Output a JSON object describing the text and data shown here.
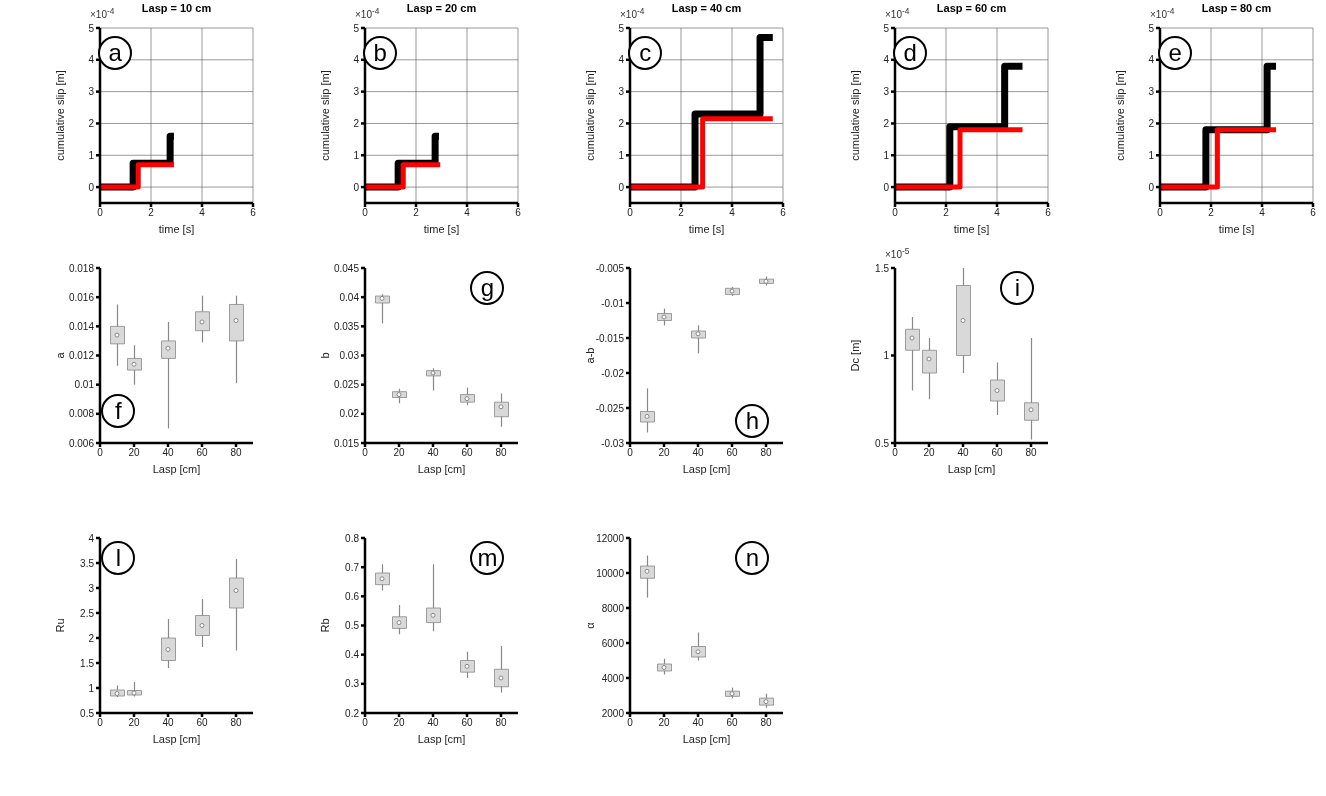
{
  "chart_data": [
    {
      "type": "step",
      "title": "Lasp = 10 cm",
      "xlabel": "time [s]",
      "ylabel": "cumulative slip [m]",
      "annotations": [
        "a",
        "×10$^{-4}$"
      ],
      "xlim": [
        0,
        6
      ],
      "xticks": [
        0,
        2,
        4,
        6
      ],
      "ylim": [
        -0.5,
        5
      ],
      "yticks": [
        0,
        1,
        2,
        3,
        4,
        5
      ],
      "grid": true,
      "series": [
        {
          "color": "#000000",
          "x": [
            0,
            1.3,
            2.75,
            2.9
          ],
          "values": [
            0,
            0.75,
            1.6,
            1.6
          ]
        },
        {
          "color": "#ff0000",
          "x": [
            0,
            1.5,
            2.9
          ],
          "values": [
            0,
            0.7,
            0.7
          ]
        }
      ]
    },
    {
      "type": "step",
      "title": "Lasp = 20 cm",
      "xlabel": "time [s]",
      "ylabel": "cumulative slip [m]",
      "annotations": [
        "b",
        "×10$^{-4}$"
      ],
      "xlim": [
        0,
        6
      ],
      "xticks": [
        0,
        2,
        4,
        6
      ],
      "ylim": [
        -0.5,
        5
      ],
      "yticks": [
        0,
        1,
        2,
        3,
        4,
        5
      ],
      "grid": true,
      "series": [
        {
          "color": "#000000",
          "x": [
            0,
            1.3,
            2.75,
            2.9
          ],
          "values": [
            0,
            0.75,
            1.6,
            1.6
          ]
        },
        {
          "color": "#ff0000",
          "x": [
            0,
            1.5,
            2.95
          ],
          "values": [
            0,
            0.7,
            0.7
          ]
        }
      ]
    },
    {
      "type": "step",
      "title": "Lasp = 40 cm",
      "xlabel": "time [s]",
      "ylabel": "cumulative slip [m]",
      "annotations": [
        "c",
        "×10$^{-4}$"
      ],
      "xlim": [
        0,
        6
      ],
      "xticks": [
        0,
        2,
        4,
        6
      ],
      "ylim": [
        -0.5,
        5
      ],
      "yticks": [
        0,
        1,
        2,
        3,
        4,
        5
      ],
      "grid": true,
      "series": [
        {
          "color": "#000000",
          "x": [
            0,
            2.55,
            5.1,
            5.6
          ],
          "values": [
            0,
            2.3,
            4.7,
            4.7
          ]
        },
        {
          "color": "#ff0000",
          "x": [
            0,
            2.85,
            5.6
          ],
          "values": [
            0,
            2.15,
            2.15
          ]
        }
      ]
    },
    {
      "type": "step",
      "title": "Lasp = 60 cm",
      "xlabel": "time [s]",
      "ylabel": "cumulative slip [m]",
      "annotations": [
        "d",
        "×10$^{-4}$"
      ],
      "xlim": [
        0,
        6
      ],
      "xticks": [
        0,
        2,
        4,
        6
      ],
      "ylim": [
        -0.5,
        5
      ],
      "yticks": [
        0,
        1,
        2,
        3,
        4,
        5
      ],
      "grid": true,
      "series": [
        {
          "color": "#000000",
          "x": [
            0,
            2.15,
            4.3,
            5.0
          ],
          "values": [
            0,
            1.9,
            3.8,
            3.8
          ]
        },
        {
          "color": "#ff0000",
          "x": [
            0,
            2.55,
            5.0
          ],
          "values": [
            0,
            1.8,
            1.8
          ]
        }
      ]
    },
    {
      "type": "step",
      "title": "Lasp = 80 cm",
      "xlabel": "time [s]",
      "ylabel": "cumulative slip [m]",
      "annotations": [
        "e",
        "×10$^{-4}$"
      ],
      "xlim": [
        0,
        6
      ],
      "xticks": [
        0,
        2,
        4,
        6
      ],
      "ylim": [
        -0.5,
        5
      ],
      "yticks": [
        0,
        1,
        2,
        3,
        4,
        5
      ],
      "grid": true,
      "series": [
        {
          "color": "#000000",
          "x": [
            0,
            1.8,
            4.2,
            4.55
          ],
          "values": [
            0,
            1.8,
            3.8,
            3.8
          ]
        },
        {
          "color": "#ff0000",
          "x": [
            0,
            2.25,
            4.55
          ],
          "values": [
            0,
            1.8,
            1.8
          ]
        }
      ]
    },
    {
      "type": "box",
      "xlabel": "Lasp [cm]",
      "ylabel": "a",
      "annotations": [
        "f"
      ],
      "xlim": [
        0,
        90
      ],
      "xticks": [
        0,
        20,
        40,
        60,
        80
      ],
      "ylim": [
        0.006,
        0.018
      ],
      "yticks": [
        0.006,
        0.008,
        0.01,
        0.012,
        0.014,
        0.016,
        0.018
      ],
      "color": "#d9d9d9",
      "x": [
        10,
        20,
        40,
        60,
        80
      ],
      "boxes": [
        {
          "low": 0.0113,
          "q1": 0.0128,
          "median": 0.0134,
          "q3": 0.014,
          "high": 0.0155
        },
        {
          "low": 0.01,
          "q1": 0.011,
          "median": 0.0114,
          "q3": 0.0118,
          "high": 0.0127
        },
        {
          "low": 0.007,
          "q1": 0.0118,
          "median": 0.0125,
          "q3": 0.013,
          "high": 0.0143
        },
        {
          "low": 0.0129,
          "q1": 0.0137,
          "median": 0.0143,
          "q3": 0.015,
          "high": 0.0161
        },
        {
          "low": 0.0101,
          "q1": 0.013,
          "median": 0.0144,
          "q3": 0.0155,
          "high": 0.0161
        }
      ]
    },
    {
      "type": "box",
      "xlabel": "Lasp [cm]",
      "ylabel": "b",
      "annotations": [
        "g"
      ],
      "xlim": [
        0,
        90
      ],
      "xticks": [
        0,
        20,
        40,
        60,
        80
      ],
      "ylim": [
        0.015,
        0.045
      ],
      "yticks": [
        0.015,
        0.02,
        0.025,
        0.03,
        0.035,
        0.04,
        0.045
      ],
      "color": "#d9d9d9",
      "x": [
        10,
        20,
        40,
        60,
        80
      ],
      "boxes": [
        {
          "low": 0.0355,
          "q1": 0.039,
          "median": 0.0398,
          "q3": 0.0402,
          "high": 0.0405
        },
        {
          "low": 0.0218,
          "q1": 0.0228,
          "median": 0.0233,
          "q3": 0.0238,
          "high": 0.0243
        },
        {
          "low": 0.024,
          "q1": 0.0265,
          "median": 0.027,
          "q3": 0.0274,
          "high": 0.0278
        },
        {
          "low": 0.0215,
          "q1": 0.022,
          "median": 0.0226,
          "q3": 0.0233,
          "high": 0.0245
        },
        {
          "low": 0.0178,
          "q1": 0.0195,
          "median": 0.0212,
          "q3": 0.022,
          "high": 0.0235
        }
      ]
    },
    {
      "type": "box",
      "xlabel": "Lasp [cm]",
      "ylabel": "a-b",
      "annotations": [
        "h"
      ],
      "xlim": [
        0,
        90
      ],
      "xticks": [
        0,
        20,
        40,
        60,
        80
      ],
      "ylim": [
        -0.03,
        -0.005
      ],
      "yticks": [
        -0.03,
        -0.025,
        -0.02,
        -0.015,
        -0.01,
        -0.005
      ],
      "color": "#d9d9d9",
      "x": [
        10,
        20,
        40,
        60,
        80
      ],
      "boxes": [
        {
          "low": -0.0285,
          "q1": -0.027,
          "median": -0.0262,
          "q3": -0.0255,
          "high": -0.0222
        },
        {
          "low": -0.0132,
          "q1": -0.0125,
          "median": -0.012,
          "q3": -0.0115,
          "high": -0.0108
        },
        {
          "low": -0.0172,
          "q1": -0.015,
          "median": -0.0144,
          "q3": -0.014,
          "high": -0.0132
        },
        {
          "low": -0.009,
          "q1": -0.0088,
          "median": -0.0083,
          "q3": -0.0079,
          "high": -0.0077
        },
        {
          "low": -0.0075,
          "q1": -0.0072,
          "median": -0.0069,
          "q3": -0.0066,
          "high": -0.0062
        }
      ]
    },
    {
      "type": "box",
      "xlabel": "Lasp [cm]",
      "ylabel": "Dc [m]",
      "annotations": [
        "i",
        "×10$^{-5}$"
      ],
      "xlim": [
        0,
        90
      ],
      "xticks": [
        0,
        20,
        40,
        60,
        80
      ],
      "ylim": [
        0.5,
        1.5
      ],
      "yticks": [
        0.5,
        1,
        1.5
      ],
      "color": "#d9d9d9",
      "x": [
        10,
        20,
        40,
        60,
        80
      ],
      "boxes": [
        {
          "low": 0.8,
          "q1": 1.03,
          "median": 1.1,
          "q3": 1.15,
          "high": 1.22
        },
        {
          "low": 0.75,
          "q1": 0.9,
          "median": 0.98,
          "q3": 1.03,
          "high": 1.1
        },
        {
          "low": 0.9,
          "q1": 1.0,
          "median": 1.2,
          "q3": 1.4,
          "high": 1.5
        },
        {
          "low": 0.66,
          "q1": 0.74,
          "median": 0.8,
          "q3": 0.86,
          "high": 0.96
        },
        {
          "low": 0.52,
          "q1": 0.63,
          "median": 0.69,
          "q3": 0.73,
          "high": 1.1
        }
      ]
    },
    {
      "type": "box",
      "xlabel": "Lasp [cm]",
      "ylabel": "Ru",
      "annotations": [
        "l"
      ],
      "xlim": [
        0,
        90
      ],
      "xticks": [
        0,
        20,
        40,
        60,
        80
      ],
      "ylim": [
        0.5,
        4
      ],
      "yticks": [
        0.5,
        1,
        1.5,
        2,
        2.5,
        3,
        3.5,
        4
      ],
      "color": "#d9d9d9",
      "x": [
        10,
        20,
        40,
        60,
        80
      ],
      "boxes": [
        {
          "low": 0.82,
          "q1": 0.84,
          "median": 0.89,
          "q3": 0.96,
          "high": 1.05
        },
        {
          "low": 0.83,
          "q1": 0.86,
          "median": 0.9,
          "q3": 0.95,
          "high": 1.12
        },
        {
          "low": 1.4,
          "q1": 1.55,
          "median": 1.77,
          "q3": 2.0,
          "high": 2.38
        },
        {
          "low": 1.82,
          "q1": 2.05,
          "median": 2.25,
          "q3": 2.45,
          "high": 2.78
        },
        {
          "low": 1.75,
          "q1": 2.6,
          "median": 2.95,
          "q3": 3.2,
          "high": 3.58
        }
      ]
    },
    {
      "type": "box",
      "xlabel": "Lasp [cm]",
      "ylabel": "Rb",
      "annotations": [
        "m"
      ],
      "xlim": [
        0,
        90
      ],
      "xticks": [
        0,
        20,
        40,
        60,
        80
      ],
      "ylim": [
        0.2,
        0.8
      ],
      "yticks": [
        0.2,
        0.3,
        0.4,
        0.5,
        0.6,
        0.7,
        0.8
      ],
      "color": "#d9d9d9",
      "x": [
        10,
        20,
        40,
        60,
        80
      ],
      "boxes": [
        {
          "low": 0.62,
          "q1": 0.64,
          "median": 0.66,
          "q3": 0.68,
          "high": 0.71
        },
        {
          "low": 0.47,
          "q1": 0.49,
          "median": 0.51,
          "q3": 0.53,
          "high": 0.57
        },
        {
          "low": 0.48,
          "q1": 0.51,
          "median": 0.535,
          "q3": 0.56,
          "high": 0.71
        },
        {
          "low": 0.32,
          "q1": 0.34,
          "median": 0.36,
          "q3": 0.38,
          "high": 0.41
        },
        {
          "low": 0.27,
          "q1": 0.29,
          "median": 0.32,
          "q3": 0.35,
          "high": 0.43
        }
      ]
    },
    {
      "type": "box",
      "xlabel": "Lasp [cm]",
      "ylabel": "α",
      "annotations": [
        "n"
      ],
      "xlim": [
        0,
        90
      ],
      "xticks": [
        0,
        20,
        40,
        60,
        80
      ],
      "ylim": [
        2000,
        12000
      ],
      "yticks": [
        2000,
        4000,
        6000,
        8000,
        10000,
        12000
      ],
      "color": "#d9d9d9",
      "x": [
        10,
        20,
        40,
        60,
        80
      ],
      "boxes": [
        {
          "low": 8600,
          "q1": 9700,
          "median": 10100,
          "q3": 10400,
          "high": 11000
        },
        {
          "low": 4200,
          "q1": 4400,
          "median": 4600,
          "q3": 4800,
          "high": 5100
        },
        {
          "low": 5000,
          "q1": 5200,
          "median": 5500,
          "q3": 5800,
          "high": 6600
        },
        {
          "low": 2850,
          "q1": 2950,
          "median": 3100,
          "q3": 3250,
          "high": 3450
        },
        {
          "low": 2300,
          "q1": 2450,
          "median": 2650,
          "q3": 2850,
          "high": 3100
        }
      ]
    }
  ]
}
